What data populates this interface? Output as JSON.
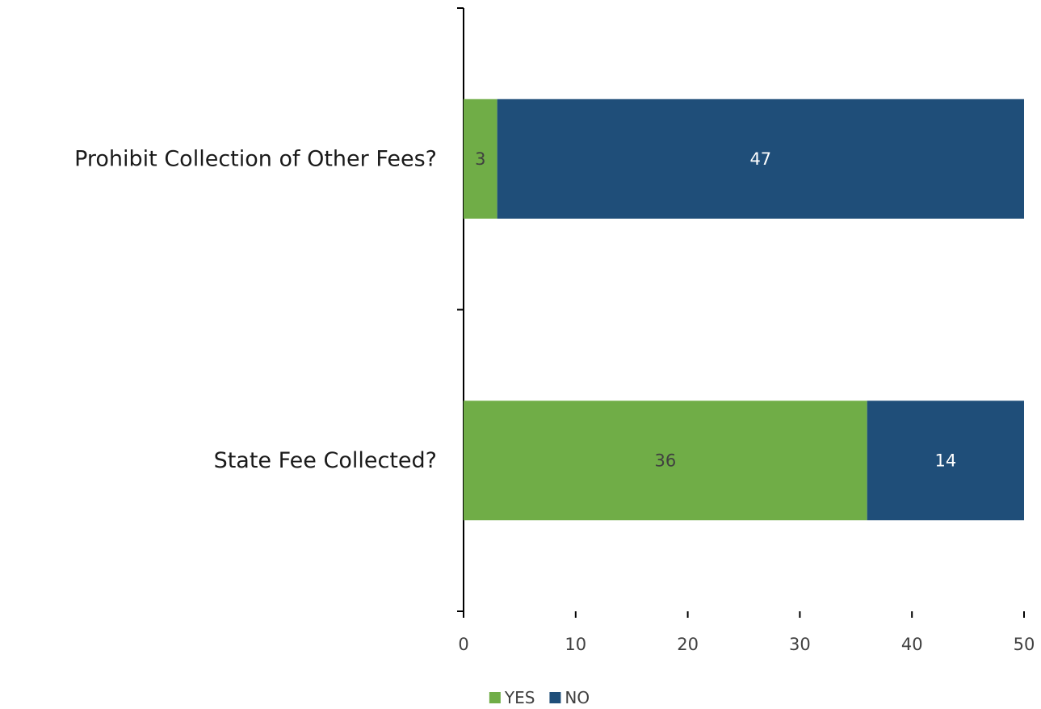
{
  "chart_data": {
    "type": "bar",
    "orientation": "horizontal",
    "stacked": true,
    "categories": [
      "Prohibit Collection of Other Fees?",
      "State Fee Collected?"
    ],
    "series": [
      {
        "name": "YES",
        "values": [
          3,
          36
        ],
        "color": "#70ad47",
        "label_color": "#404040"
      },
      {
        "name": "NO",
        "values": [
          47,
          14
        ],
        "color": "#1f4e79",
        "label_color": "#ffffff"
      }
    ],
    "title": "",
    "xlabel": "",
    "ylabel": "",
    "xlim": [
      0,
      50
    ],
    "xticks": [
      0,
      10,
      20,
      30,
      40,
      50
    ],
    "grid": false,
    "legend": "bottom",
    "data_labels": true
  }
}
